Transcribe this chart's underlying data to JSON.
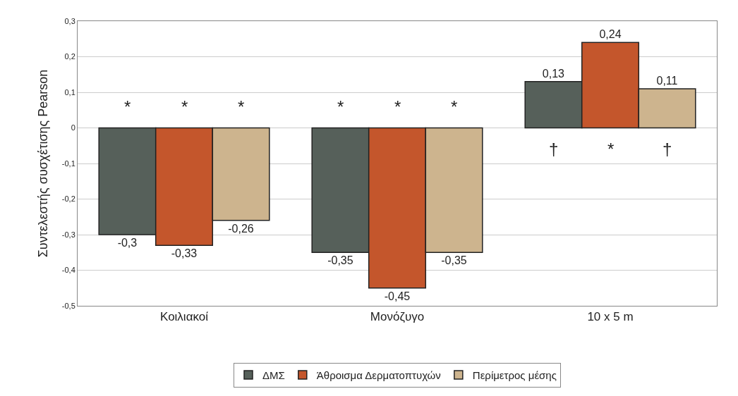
{
  "chart_data": {
    "type": "bar",
    "ylabel": "Συντελεστής συσχέτισης Pearson",
    "categories": [
      "Κοιλιακοί",
      "Μονόζυγο",
      "10 x 5 m"
    ],
    "series": [
      {
        "name": "ΔΜΣ",
        "color": "#56605a",
        "values": [
          -0.3,
          -0.35,
          0.13
        ],
        "value_labels": [
          "-0,3",
          "-0,35",
          "0,13"
        ]
      },
      {
        "name": "Άθροισμα Δερματοπτυχών",
        "color": "#c4562c",
        "values": [
          -0.33,
          -0.45,
          0.24
        ],
        "value_labels": [
          "-0,33",
          "-0,45",
          "0,24"
        ]
      },
      {
        "name": "Περίμετρος μέσης",
        "color": "#cdb48e",
        "values": [
          -0.26,
          -0.35,
          0.11
        ],
        "value_labels": [
          "-0,26",
          "-0,35",
          "0,11"
        ]
      }
    ],
    "ylim": [
      -0.5,
      0.3
    ],
    "yticks": [
      {
        "value": -0.5,
        "label": "-0,5"
      },
      {
        "value": -0.4,
        "label": "-0,4"
      },
      {
        "value": -0.3,
        "label": "-0,3"
      },
      {
        "value": -0.2,
        "label": "-0,2"
      },
      {
        "value": -0.1,
        "label": "-0,1"
      },
      0,
      {
        "value": 0.1,
        "label": "0,1"
      },
      {
        "value": 0.2,
        "label": "0,2"
      },
      {
        "value": 0.3,
        "label": "0,3"
      }
    ],
    "grid": "y",
    "legend": "bottom",
    "annotations": [
      "*",
      "*",
      "*",
      "*",
      "*",
      "*",
      "†",
      "*",
      "†"
    ]
  }
}
